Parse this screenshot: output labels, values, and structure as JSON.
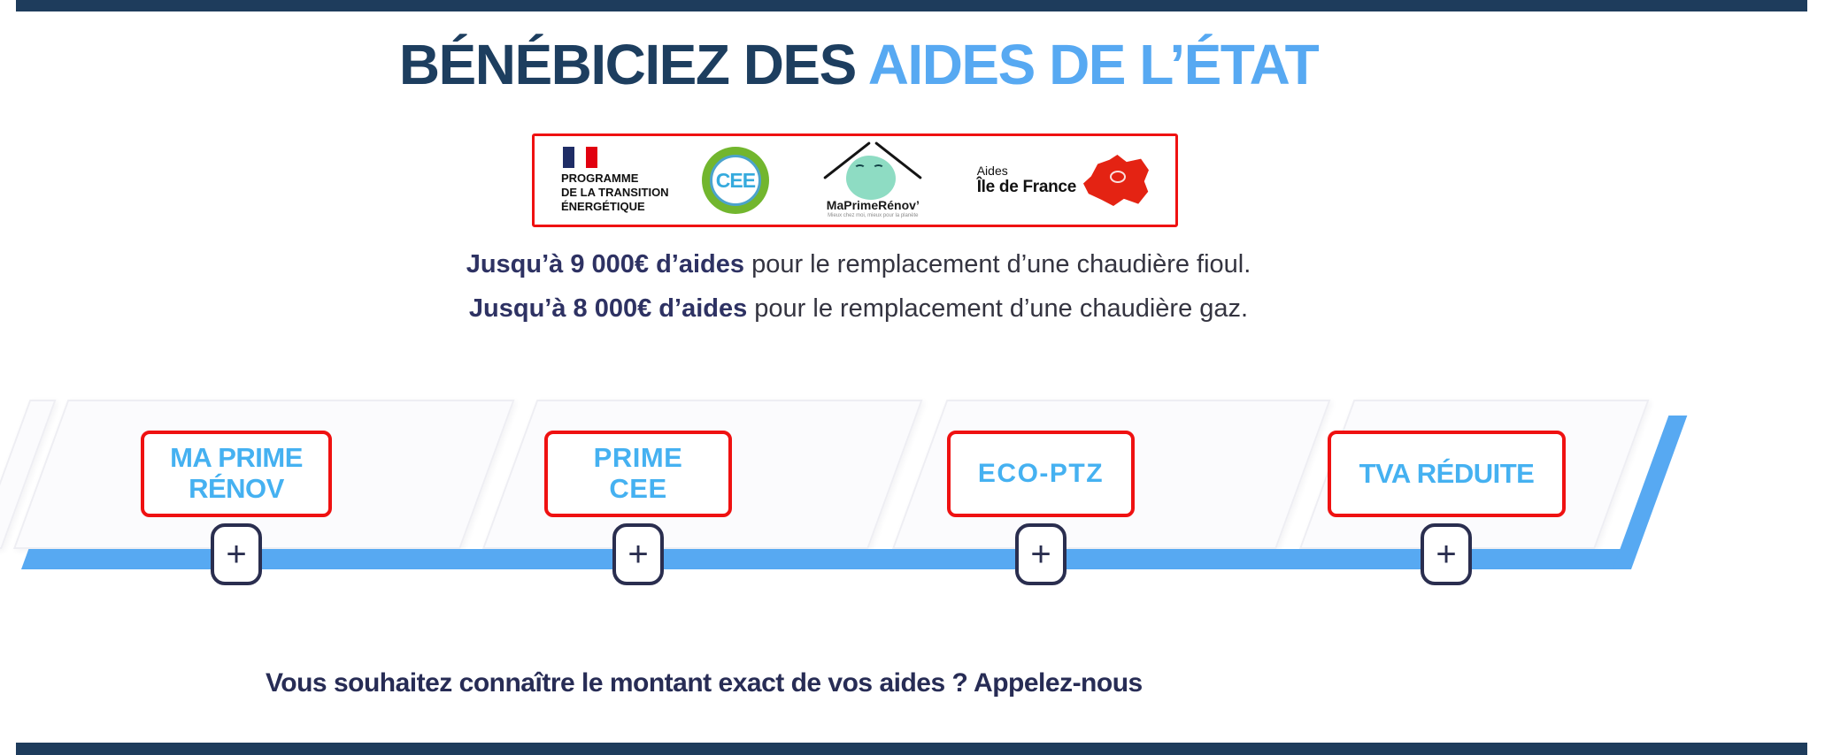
{
  "header": {
    "title_dark": "BÉNÉBICIEZ DES ",
    "title_blue": "AIDES DE L’ÉTAT"
  },
  "logos": {
    "programme": {
      "text": "PROGRAMME\nDE LA TRANSITION\nÉNERGÉTIQUE"
    },
    "cee": {
      "label": "CEE"
    },
    "maprimerenov": {
      "name": "MaPrimeRénov’",
      "tagline": "Mieux chez moi, mieux pour la planète"
    },
    "ile_de_france": {
      "line1": "Aides",
      "line2": "Île de France"
    }
  },
  "subtitles": [
    {
      "bold": "Jusqu’à 9 000€ d’aides",
      "rest": " pour le remplacement d’une chaudière fioul."
    },
    {
      "bold": "Jusqu’à 8 000€ d’aides",
      "rest": " pour le remplacement d’une chaudière gaz."
    }
  ],
  "aids": {
    "items": [
      {
        "label": "MA PRIME\nRÉNOV",
        "expand": "+"
      },
      {
        "label": "PRIME\nCEE",
        "expand": "+"
      },
      {
        "label": "ECO-PTZ",
        "expand": "+"
      },
      {
        "label": "TVA RÉDUITE",
        "expand": "+"
      }
    ]
  },
  "footer": {
    "cta": "Vous souhaitez connaître le montant exact de vos aides ? Appelez-nous"
  },
  "colors": {
    "navy_bar": "#1e3c5c",
    "title_dark": "#1d3e5f",
    "accent_blue": "#57a9f2",
    "label_blue": "#45b1f1",
    "border_red": "#ef1111",
    "button_navy": "#2a2e4f"
  }
}
